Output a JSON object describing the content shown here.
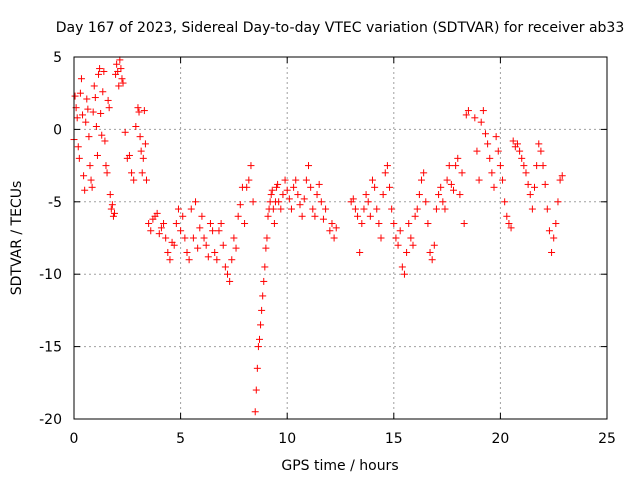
{
  "chart_data": {
    "type": "scatter",
    "title": "Day 167 of 2023, Sidereal Day-to-day VTEC variation (SDTVAR) for receiver ab33",
    "xlabel": "GPS time / hours",
    "ylabel": "SDTVAR / TECUs",
    "xlim": [
      0,
      25
    ],
    "ylim": [
      -20,
      5
    ],
    "xticks": [
      0,
      5,
      10,
      15,
      20,
      25
    ],
    "yticks": [
      5,
      0,
      -5,
      -10,
      -15,
      -20
    ],
    "grid": true,
    "marker": "+",
    "color": "#ff0000",
    "series": [
      {
        "name": "SDTVAR",
        "x": [
          0.0,
          0.05,
          0.1,
          0.15,
          0.2,
          0.25,
          0.3,
          0.35,
          0.4,
          0.45,
          0.5,
          0.55,
          0.6,
          0.65,
          0.7,
          0.75,
          0.8,
          0.85,
          0.9,
          0.95,
          1.0,
          1.05,
          1.1,
          1.15,
          1.2,
          1.25,
          1.3,
          1.35,
          1.4,
          1.45,
          1.5,
          1.55,
          1.6,
          1.65,
          1.7,
          1.75,
          1.8,
          1.85,
          1.9,
          1.95,
          2.0,
          2.05,
          2.1,
          2.15,
          2.2,
          2.25,
          2.3,
          2.4,
          2.5,
          2.6,
          2.7,
          2.8,
          2.9,
          3.0,
          3.05,
          3.1,
          3.15,
          3.2,
          3.25,
          3.3,
          3.35,
          3.4,
          3.5,
          3.6,
          3.7,
          3.8,
          3.9,
          4.0,
          4.1,
          4.2,
          4.3,
          4.4,
          4.5,
          4.6,
          4.7,
          4.8,
          4.9,
          5.0,
          5.1,
          5.2,
          5.3,
          5.4,
          5.5,
          5.6,
          5.7,
          5.8,
          5.9,
          6.0,
          6.1,
          6.2,
          6.3,
          6.4,
          6.5,
          6.6,
          6.7,
          6.8,
          6.9,
          7.0,
          7.1,
          7.2,
          7.3,
          7.4,
          7.5,
          7.6,
          7.7,
          7.8,
          7.9,
          8.0,
          8.1,
          8.2,
          8.3,
          8.4,
          8.5,
          8.55,
          8.6,
          8.65,
          8.7,
          8.75,
          8.8,
          8.85,
          8.9,
          8.95,
          9.0,
          9.05,
          9.1,
          9.15,
          9.2,
          9.25,
          9.3,
          9.35,
          9.4,
          9.45,
          9.5,
          9.55,
          9.6,
          9.7,
          9.8,
          9.9,
          10.0,
          10.1,
          10.2,
          10.3,
          10.4,
          10.5,
          10.6,
          10.7,
          10.8,
          10.9,
          11.0,
          11.1,
          11.2,
          11.3,
          11.4,
          11.5,
          11.6,
          11.7,
          11.8,
          12.0,
          12.1,
          12.2,
          12.3,
          13.0,
          13.1,
          13.2,
          13.3,
          13.4,
          13.5,
          13.6,
          13.7,
          13.8,
          13.9,
          14.0,
          14.1,
          14.2,
          14.3,
          14.4,
          14.5,
          14.6,
          14.7,
          14.8,
          14.9,
          15.0,
          15.1,
          15.2,
          15.3,
          15.4,
          15.5,
          15.6,
          15.7,
          15.8,
          15.9,
          16.0,
          16.1,
          16.2,
          16.3,
          16.4,
          16.5,
          16.6,
          16.7,
          16.8,
          16.9,
          17.0,
          17.1,
          17.2,
          17.3,
          17.4,
          17.5,
          17.6,
          17.7,
          17.8,
          17.9,
          18.0,
          18.1,
          18.2,
          18.3,
          18.4,
          18.5,
          18.8,
          18.9,
          19.0,
          19.1,
          19.2,
          19.3,
          19.4,
          19.5,
          19.6,
          19.7,
          19.8,
          19.9,
          20.0,
          20.1,
          20.2,
          20.3,
          20.4,
          20.5,
          20.6,
          20.7,
          20.8,
          20.9,
          21.0,
          21.1,
          21.2,
          21.3,
          21.4,
          21.5,
          21.6,
          21.7,
          21.8,
          21.9,
          22.0,
          22.1,
          22.2,
          22.3,
          22.4,
          22.5,
          22.6,
          22.7,
          22.8,
          22.9
        ],
        "y": [
          -0.7,
          2.3,
          1.5,
          0.8,
          -1.2,
          -2.0,
          2.5,
          3.5,
          1.0,
          -3.2,
          -4.2,
          0.5,
          2.1,
          1.4,
          -0.5,
          -2.5,
          -3.5,
          -4.0,
          1.2,
          3.0,
          2.2,
          0.2,
          -1.8,
          3.8,
          4.2,
          1.1,
          -0.4,
          2.6,
          4.0,
          -0.8,
          -2.5,
          -3.0,
          2.0,
          1.5,
          -4.5,
          -5.5,
          -5.2,
          -6.0,
          -5.8,
          3.8,
          4.5,
          4.0,
          3.0,
          4.8,
          4.2,
          3.5,
          3.2,
          -0.2,
          -2.0,
          -1.8,
          -3.0,
          -3.5,
          0.2,
          1.5,
          1.2,
          -0.5,
          -1.5,
          -3.0,
          -2.0,
          1.3,
          -1.0,
          -3.5,
          -6.5,
          -7.0,
          -6.2,
          -6.0,
          -5.8,
          -7.2,
          -6.8,
          -6.5,
          -7.5,
          -8.5,
          -9.0,
          -7.8,
          -8.0,
          -6.5,
          -5.5,
          -7.0,
          -6.0,
          -7.5,
          -8.5,
          -9.0,
          -5.5,
          -7.5,
          -5.0,
          -8.2,
          -6.8,
          -6.0,
          -7.5,
          -8.0,
          -8.8,
          -6.5,
          -7.0,
          -8.5,
          -9.0,
          -7.0,
          -6.5,
          -8.0,
          -9.5,
          -10.0,
          -10.5,
          -9.0,
          -7.5,
          -8.2,
          -6.0,
          -5.2,
          -4.0,
          -6.5,
          -4.0,
          -3.5,
          -2.5,
          -5.0,
          -19.5,
          -18.0,
          -16.5,
          -15.0,
          -14.5,
          -13.5,
          -12.5,
          -11.5,
          -10.5,
          -9.5,
          -8.2,
          -7.5,
          -6.0,
          -5.5,
          -5.0,
          -4.5,
          -4.2,
          -5.5,
          -6.5,
          -5.0,
          -4.0,
          -3.8,
          -5.0,
          -5.5,
          -4.5,
          -3.5,
          -4.2,
          -4.8,
          -5.5,
          -4.0,
          -3.5,
          -4.5,
          -5.2,
          -6.0,
          -4.8,
          -3.5,
          -2.5,
          -4.0,
          -5.5,
          -6.0,
          -4.5,
          -3.8,
          -5.0,
          -6.2,
          -5.5,
          -7.0,
          -6.5,
          -7.5,
          -6.8,
          -5.0,
          -4.8,
          -5.5,
          -6.0,
          -8.5,
          -6.5,
          -5.5,
          -4.5,
          -5.0,
          -6.0,
          -3.5,
          -4.0,
          -5.5,
          -6.5,
          -7.5,
          -4.5,
          -3.0,
          -2.5,
          -4.0,
          -5.5,
          -6.5,
          -7.5,
          -8.0,
          -7.0,
          -9.5,
          -10.0,
          -8.5,
          -6.5,
          -7.5,
          -8.0,
          -6.0,
          -5.5,
          -4.5,
          -3.5,
          -3.0,
          -5.0,
          -6.5,
          -8.5,
          -9.0,
          -8.0,
          -5.5,
          -4.5,
          -4.0,
          -5.0,
          -5.5,
          -3.5,
          -2.5,
          -3.8,
          -4.2,
          -2.5,
          -2.0,
          -4.5,
          -3.0,
          -6.5,
          1.0,
          1.3,
          0.8,
          -1.5,
          -3.5,
          0.5,
          1.3,
          -0.3,
          -1.0,
          -2.0,
          -3.0,
          -4.0,
          -0.5,
          -1.5,
          -2.5,
          -3.5,
          -5.0,
          -6.0,
          -6.5,
          -6.8,
          -0.8,
          -1.2,
          -1.0,
          -1.5,
          -2.0,
          -2.5,
          -3.0,
          -3.8,
          -4.5,
          -5.5,
          -4.0,
          -2.5,
          -1.0,
          -1.5,
          -2.5,
          -3.8,
          -5.5,
          -7.0,
          -8.5,
          -7.5,
          -6.5,
          -5.0,
          -3.5,
          -3.2
        ]
      }
    ]
  }
}
